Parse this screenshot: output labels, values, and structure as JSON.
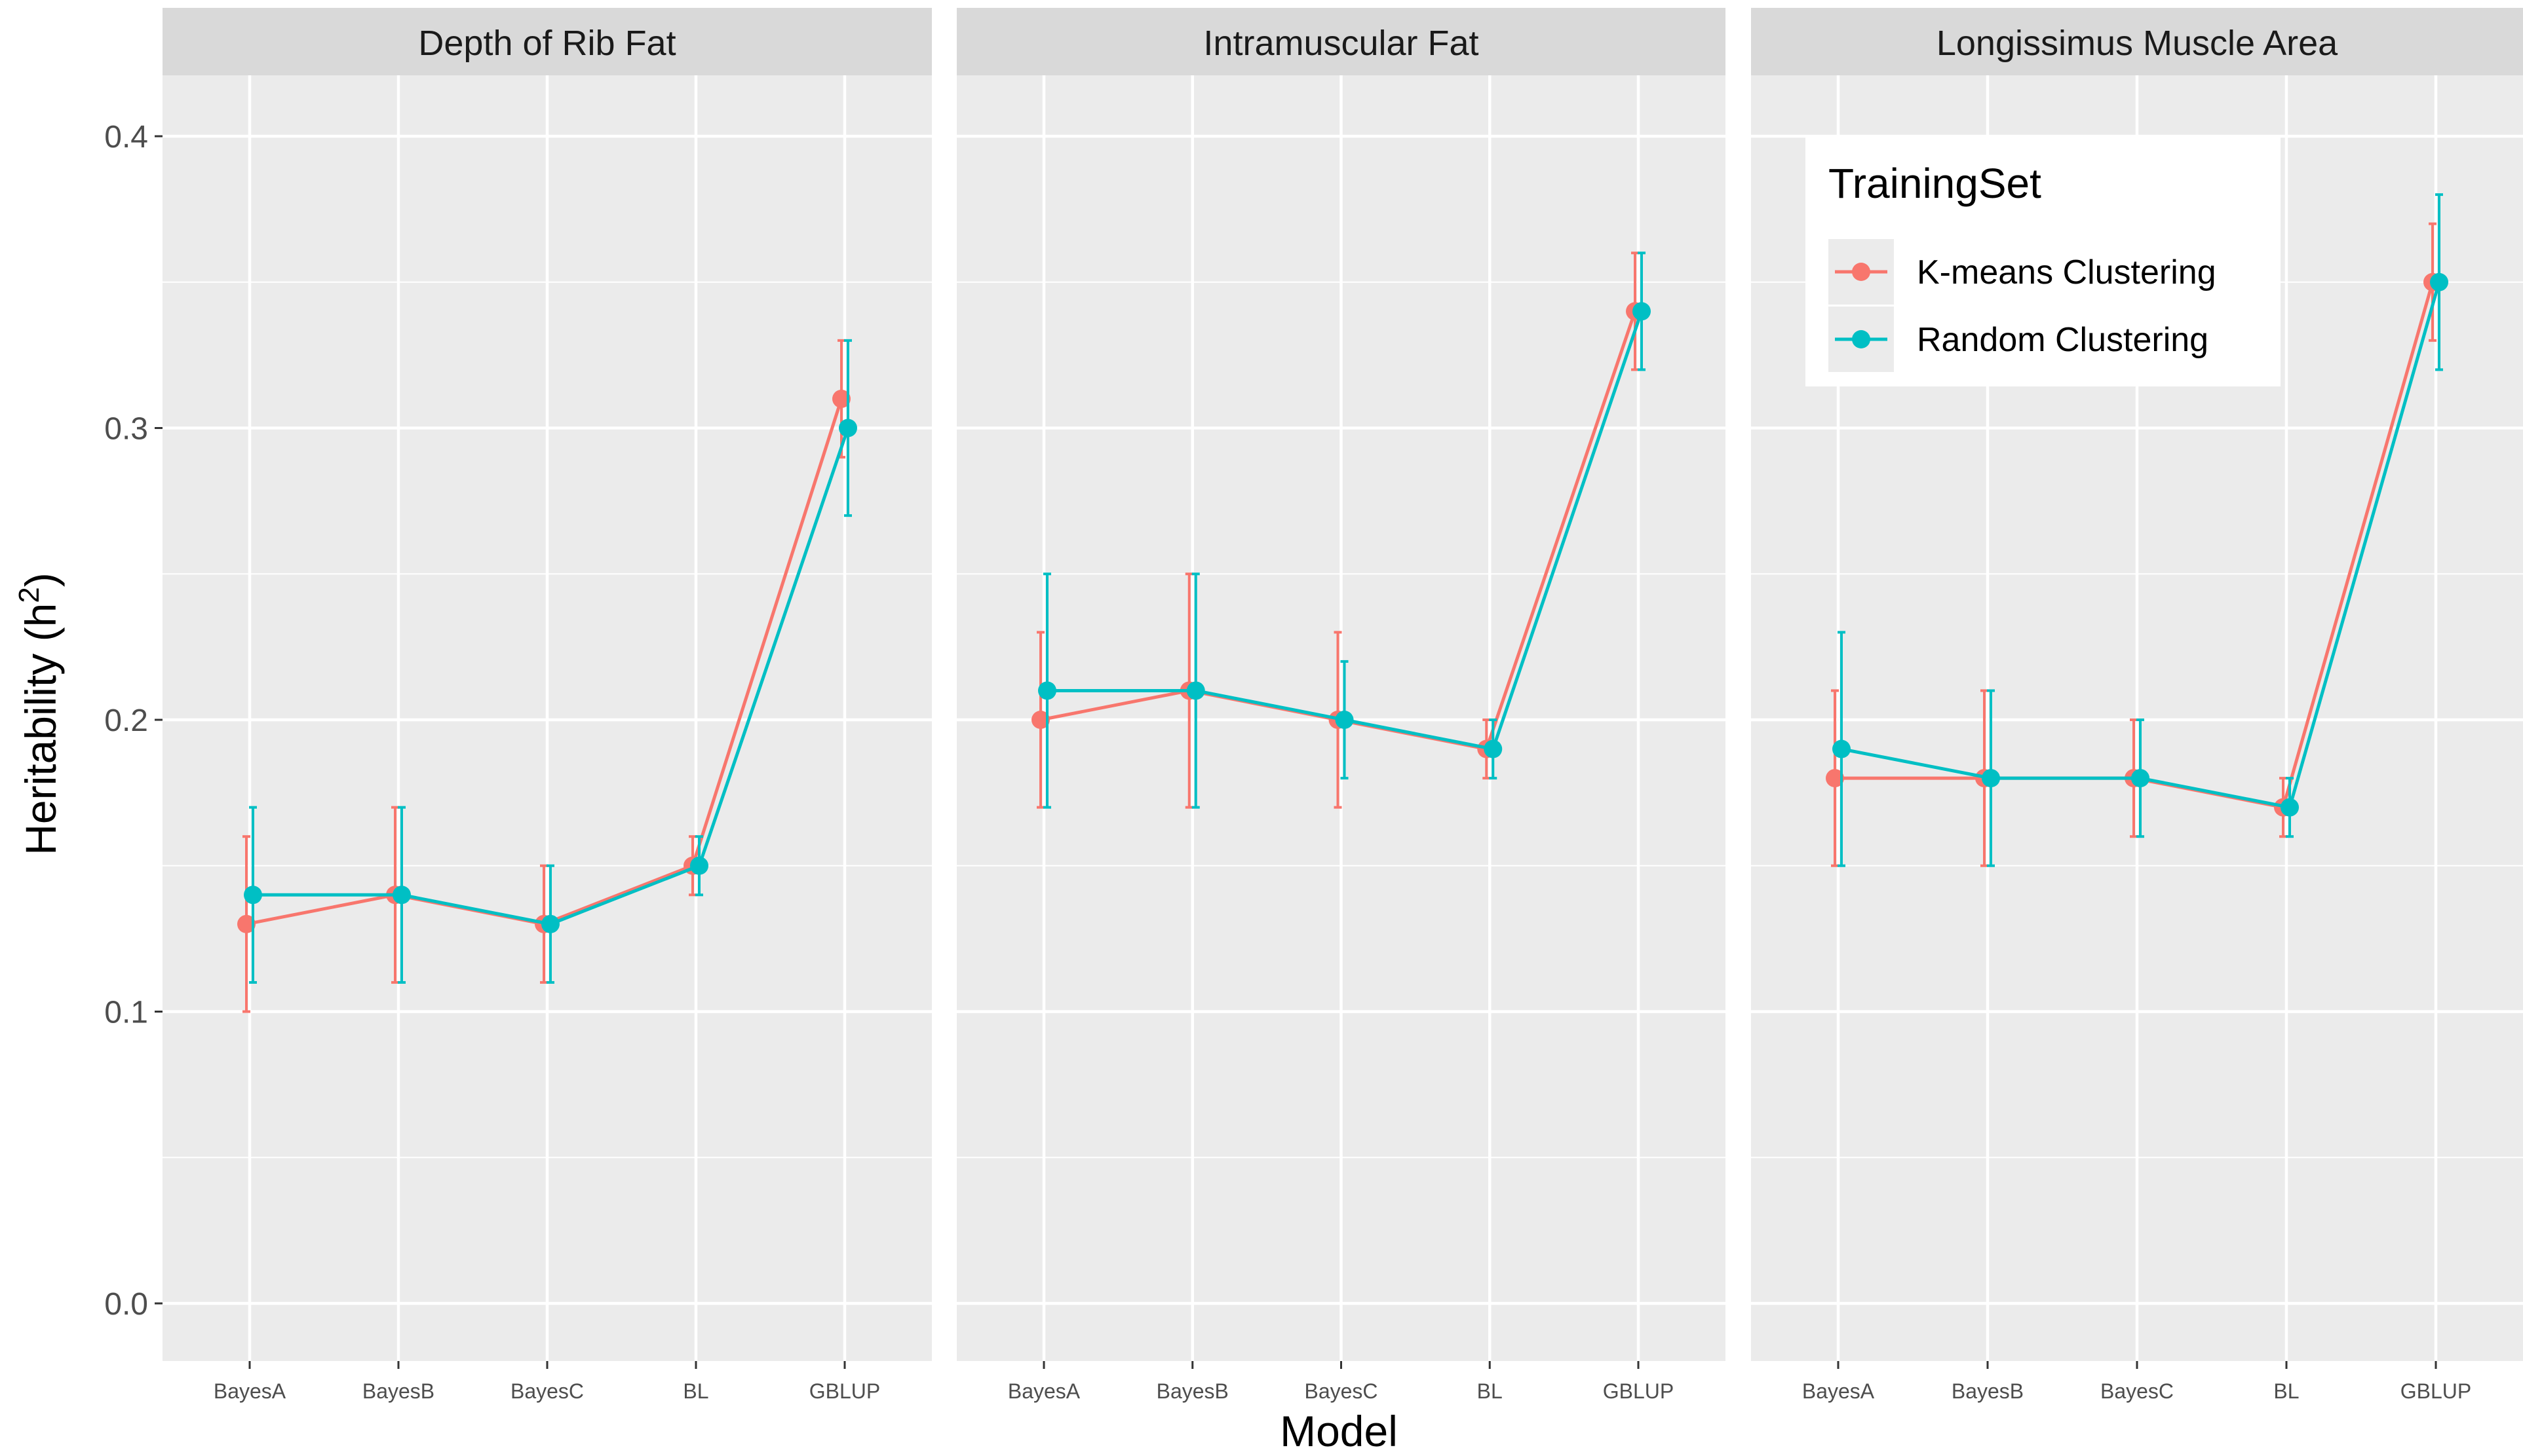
{
  "chart_data": {
    "type": "line",
    "xlabel": "Model",
    "ylabel": "Heritability (h",
    "ylabel_sup": "2",
    "ylabel_close": ")",
    "ylim": [
      0,
      0.4
    ],
    "yticks": [
      "0.0",
      "0.1",
      "0.2",
      "0.3",
      "0.4"
    ],
    "categories": [
      "BayesA",
      "BayesB",
      "BayesC",
      "BL",
      "GBLUP"
    ],
    "legend": {
      "title": "TrainingSet",
      "position": "top-right"
    },
    "colors": {
      "kmeans": "#F8766D",
      "random": "#00BFC4",
      "panel_bg": "#EBEBEB",
      "strip_bg": "#D9D9D9",
      "grid": "#FFFFFF"
    },
    "panels": [
      {
        "title": "Depth of Rib Fat",
        "series": [
          {
            "name": "K-means Clustering",
            "values": [
              0.13,
              0.14,
              0.13,
              0.15,
              0.31
            ],
            "lower": [
              0.1,
              0.11,
              0.11,
              0.14,
              0.29
            ],
            "upper": [
              0.16,
              0.17,
              0.15,
              0.16,
              0.33
            ]
          },
          {
            "name": "Random Clustering",
            "values": [
              0.14,
              0.14,
              0.13,
              0.15,
              0.3
            ],
            "lower": [
              0.11,
              0.11,
              0.11,
              0.14,
              0.27
            ],
            "upper": [
              0.17,
              0.17,
              0.15,
              0.16,
              0.33
            ]
          }
        ]
      },
      {
        "title": "Intramuscular Fat",
        "series": [
          {
            "name": "K-means Clustering",
            "values": [
              0.2,
              0.21,
              0.2,
              0.19,
              0.34
            ],
            "lower": [
              0.17,
              0.17,
              0.17,
              0.18,
              0.32
            ],
            "upper": [
              0.23,
              0.25,
              0.23,
              0.2,
              0.36
            ]
          },
          {
            "name": "Random Clustering",
            "values": [
              0.21,
              0.21,
              0.2,
              0.19,
              0.34
            ],
            "lower": [
              0.17,
              0.17,
              0.18,
              0.18,
              0.32
            ],
            "upper": [
              0.25,
              0.25,
              0.22,
              0.2,
              0.36
            ]
          }
        ]
      },
      {
        "title": "Longissimus Muscle Area",
        "series": [
          {
            "name": "K-means Clustering",
            "values": [
              0.18,
              0.18,
              0.18,
              0.17,
              0.35
            ],
            "lower": [
              0.15,
              0.15,
              0.16,
              0.16,
              0.33
            ],
            "upper": [
              0.21,
              0.21,
              0.2,
              0.18,
              0.37
            ]
          },
          {
            "name": "Random Clustering",
            "values": [
              0.19,
              0.18,
              0.18,
              0.17,
              0.35
            ],
            "lower": [
              0.15,
              0.15,
              0.16,
              0.16,
              0.32
            ],
            "upper": [
              0.23,
              0.21,
              0.2,
              0.18,
              0.38
            ]
          }
        ]
      }
    ]
  }
}
